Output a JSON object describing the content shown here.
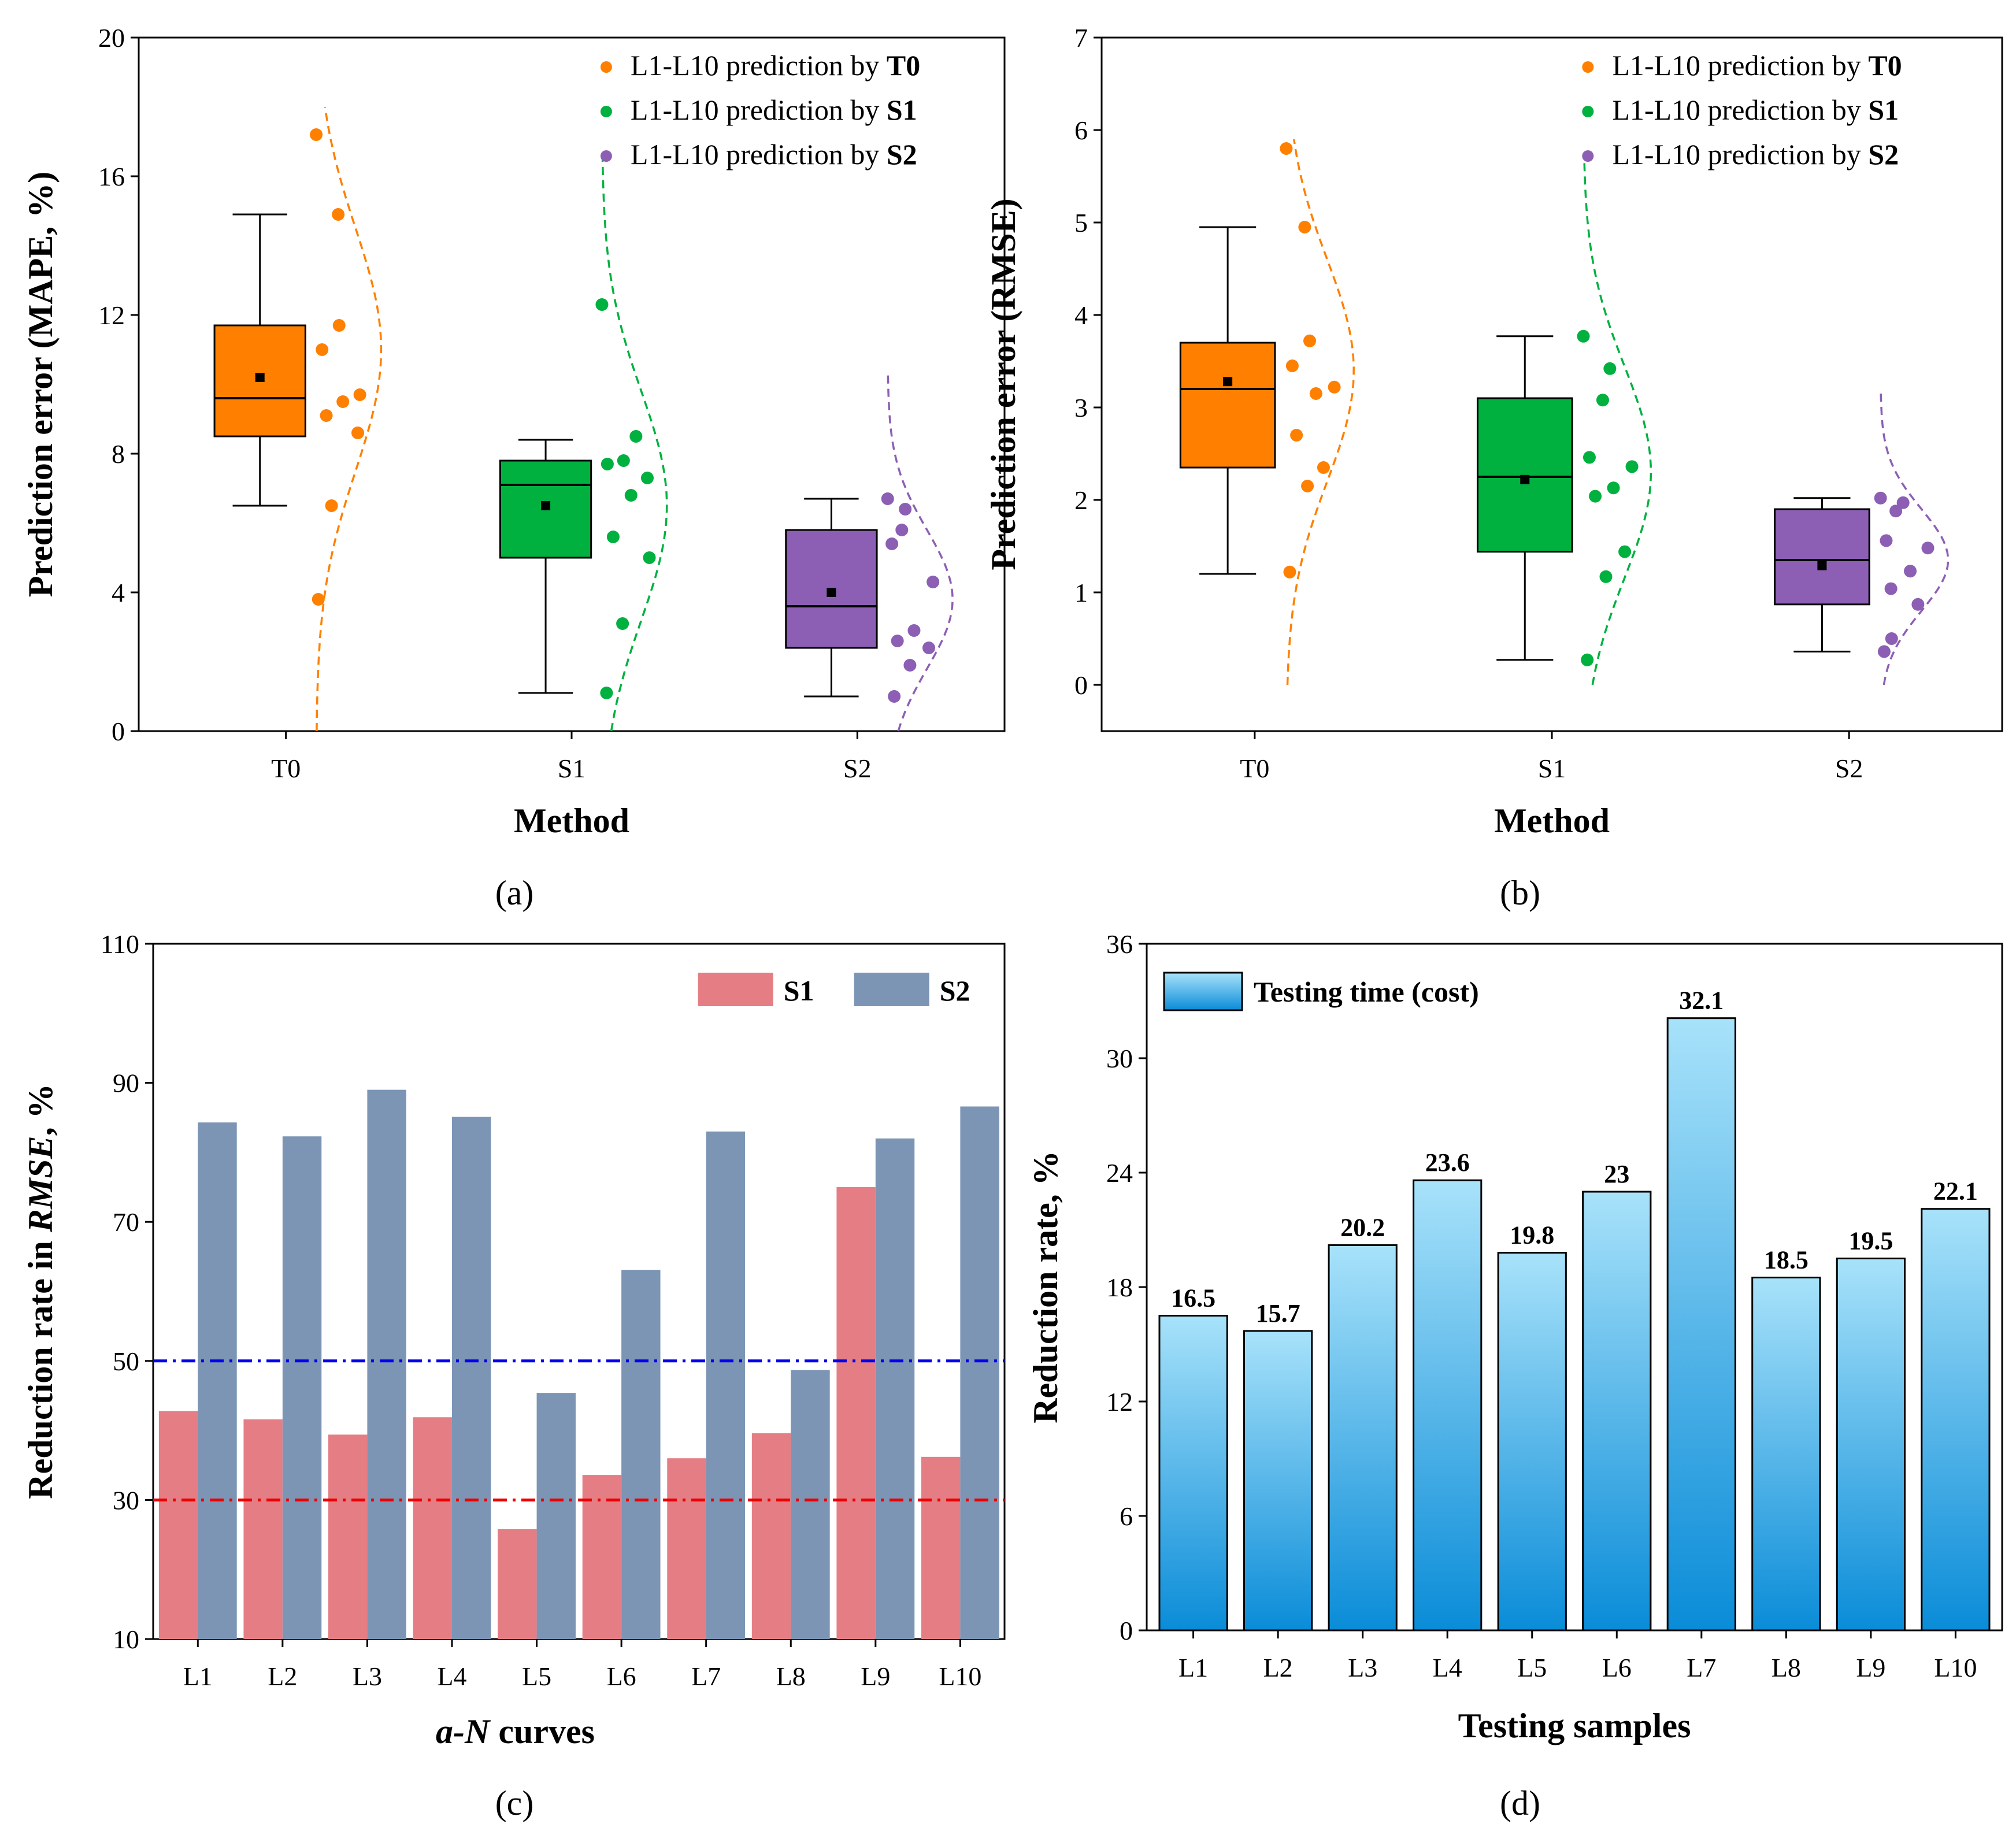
{
  "colors": {
    "t0": "#FF8000",
    "s1": "#00B140",
    "s2": "#8C5FB4",
    "bar_s1": "#E57E84",
    "bar_s2": "#7C95B5",
    "line_blue": "#0000EE",
    "line_red": "#EE0000",
    "grad_top": "#A8E2FA",
    "grad_bottom": "#0A8CD8"
  },
  "panels": {
    "a": "(a)",
    "b": "(b)",
    "c": "(c)",
    "d": "(d)"
  },
  "chart_data": [
    {
      "id": "a",
      "type": "box",
      "xlabel": "Method",
      "ylabel": "Prediction error (MAPE, %)",
      "ylim": [
        0,
        20
      ],
      "yticks": [
        0,
        4,
        8,
        12,
        16,
        20
      ],
      "categories": [
        "T0",
        "S1",
        "S2"
      ],
      "legend": [
        {
          "prefix": "L1-L10 prediction by ",
          "bold": "T0",
          "color_key": "t0"
        },
        {
          "prefix": "L1-L10 prediction by ",
          "bold": "S1",
          "color_key": "s1"
        },
        {
          "prefix": "L1-L10 prediction by ",
          "bold": "S2",
          "color_key": "s2"
        }
      ],
      "groups": [
        {
          "name": "T0",
          "color_key": "t0",
          "whisker_low": 6.5,
          "q1": 8.5,
          "median": 9.6,
          "q3": 11.7,
          "whisker_high": 14.9,
          "mean": 10.2,
          "points": [
            17.2,
            14.9,
            11.7,
            11.0,
            9.7,
            9.5,
            9.1,
            8.6,
            6.5,
            3.8
          ],
          "curve_center": 11,
          "curve_sd": 3.5,
          "curve_range": [
            0,
            18
          ]
        },
        {
          "name": "S1",
          "color_key": "s1",
          "whisker_low": 1.1,
          "q1": 5.0,
          "median": 7.1,
          "q3": 7.8,
          "whisker_high": 8.4,
          "mean": 6.5,
          "points": [
            12.3,
            8.5,
            7.8,
            7.7,
            7.3,
            6.8,
            5.6,
            5.0,
            3.1,
            1.1
          ],
          "curve_center": 6.5,
          "curve_sd": 3.3,
          "curve_range": [
            0,
            16.5
          ]
        },
        {
          "name": "S2",
          "color_key": "s2",
          "whisker_low": 1.0,
          "q1": 2.4,
          "median": 3.6,
          "q3": 5.8,
          "whisker_high": 6.7,
          "mean": 4.0,
          "points": [
            6.7,
            6.4,
            5.8,
            5.4,
            4.3,
            2.9,
            2.6,
            2.4,
            1.9,
            1.0
          ],
          "curve_center": 3.8,
          "curve_sd": 2.0,
          "curve_range": [
            0,
            10.3
          ]
        }
      ]
    },
    {
      "id": "b",
      "type": "box",
      "xlabel": "Method",
      "ylabel": "Prediction error (RMSE)",
      "ylim": [
        -0.5,
        7
      ],
      "yticks": [
        0,
        1,
        2,
        3,
        4,
        5,
        6,
        7
      ],
      "categories": [
        "T0",
        "S1",
        "S2"
      ],
      "legend": [
        {
          "prefix": "L1-L10 prediction by ",
          "bold": "T0",
          "color_key": "t0"
        },
        {
          "prefix": "L1-L10 prediction by ",
          "bold": "S1",
          "color_key": "s1"
        },
        {
          "prefix": "L1-L10 prediction by ",
          "bold": "S2",
          "color_key": "s2"
        }
      ],
      "groups": [
        {
          "name": "T0",
          "color_key": "t0",
          "whisker_low": 1.2,
          "q1": 2.35,
          "median": 3.2,
          "q3": 3.7,
          "whisker_high": 4.95,
          "mean": 3.28,
          "points": [
            5.8,
            4.95,
            3.72,
            3.45,
            3.22,
            3.15,
            2.7,
            2.35,
            2.15,
            1.22
          ],
          "curve_center": 3.4,
          "curve_sd": 1.2,
          "curve_range": [
            0,
            5.9
          ]
        },
        {
          "name": "S1",
          "color_key": "s1",
          "whisker_low": 0.27,
          "q1": 1.44,
          "median": 2.25,
          "q3": 3.1,
          "whisker_high": 3.77,
          "mean": 2.22,
          "points": [
            3.77,
            3.42,
            3.08,
            2.46,
            2.36,
            2.13,
            2.04,
            1.44,
            1.17,
            0.27
          ],
          "curve_center": 2.3,
          "curve_sd": 1.15,
          "curve_range": [
            0,
            5.7
          ]
        },
        {
          "name": "S2",
          "color_key": "s2",
          "whisker_low": 0.36,
          "q1": 0.87,
          "median": 1.35,
          "q3": 1.9,
          "whisker_high": 2.02,
          "mean": 1.29,
          "points": [
            2.02,
            1.97,
            1.88,
            1.56,
            1.48,
            1.23,
            1.04,
            0.87,
            0.5,
            0.36
          ],
          "curve_center": 1.35,
          "curve_sd": 0.55,
          "curve_range": [
            0,
            3.2
          ]
        }
      ]
    },
    {
      "id": "c",
      "type": "bar",
      "xlabel_italic": "a-N",
      "xlabel_rest": " curves",
      "ylabel_prefix": "Reduction rate in ",
      "ylabel_italic": "RMSE",
      "ylabel_suffix": ", %",
      "ylim": [
        10,
        110
      ],
      "yticks": [
        10,
        30,
        50,
        70,
        90,
        110
      ],
      "categories": [
        "L1",
        "L2",
        "L3",
        "L4",
        "L5",
        "L6",
        "L7",
        "L8",
        "L9",
        "L10"
      ],
      "series": [
        {
          "name": "S1",
          "color_key": "bar_s1",
          "values": [
            42.8,
            41.6,
            39.4,
            41.9,
            25.8,
            33.6,
            36.0,
            39.6,
            75.0,
            36.2
          ]
        },
        {
          "name": "S2",
          "color_key": "bar_s2",
          "values": [
            84.3,
            82.3,
            89.0,
            85.1,
            45.4,
            63.1,
            83.0,
            48.7,
            82.0,
            86.6
          ]
        }
      ],
      "reference_lines": [
        {
          "value": 50,
          "color_key": "line_blue"
        },
        {
          "value": 30,
          "color_key": "line_red"
        }
      ]
    },
    {
      "id": "d",
      "type": "bar",
      "xlabel": "Testing samples",
      "ylabel": "Reduction rate, %",
      "ylim": [
        0,
        36
      ],
      "yticks": [
        0,
        6,
        12,
        18,
        24,
        30,
        36
      ],
      "categories": [
        "L1",
        "L2",
        "L3",
        "L4",
        "L5",
        "L6",
        "L7",
        "L8",
        "L9",
        "L10"
      ],
      "series": [
        {
          "name": "Testing time (cost)",
          "values": [
            16.5,
            15.7,
            20.2,
            23.6,
            19.8,
            23,
            32.1,
            18.5,
            19.5,
            22.1
          ],
          "labels": [
            "16.5",
            "15.7",
            "20.2",
            "23.6",
            "19.8",
            "23",
            "32.1",
            "18.5",
            "19.5",
            "22.1"
          ]
        }
      ]
    }
  ]
}
